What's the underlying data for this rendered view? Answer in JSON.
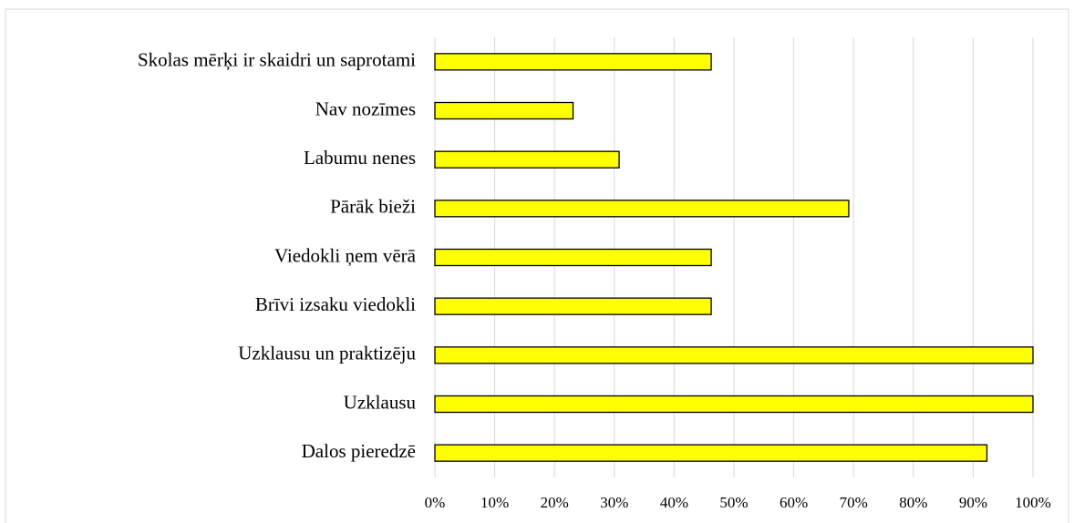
{
  "chart_data": {
    "type": "barh",
    "categories": [
      "Skolas mērķi ir skaidri un saprotami",
      "Nav nozīmes",
      "Labumu nenes",
      "Pārāk bieži",
      "Viedokli ņem vērā",
      "Brīvi izsaku viedokli",
      "Uzklausu un praktizēju",
      "Uzklausu",
      "Dalos pieredzē"
    ],
    "values": [
      46.2,
      23.1,
      30.8,
      69.2,
      46.2,
      46.2,
      100,
      100,
      92.3
    ],
    "color": "#ffff00",
    "xlim": [
      0,
      100
    ],
    "xticks": [
      {
        "value": 0,
        "label": "0%"
      },
      {
        "value": 10,
        "label": "10%"
      },
      {
        "value": 20,
        "label": "20%"
      },
      {
        "value": 30,
        "label": "30%"
      },
      {
        "value": 40,
        "label": "40%"
      },
      {
        "value": 50,
        "label": "50%"
      },
      {
        "value": 60,
        "label": "60%"
      },
      {
        "value": 70,
        "label": "70%"
      },
      {
        "value": 80,
        "label": "80%"
      },
      {
        "value": 90,
        "label": "90%"
      },
      {
        "value": 100,
        "label": "100%"
      }
    ],
    "grid": true
  }
}
